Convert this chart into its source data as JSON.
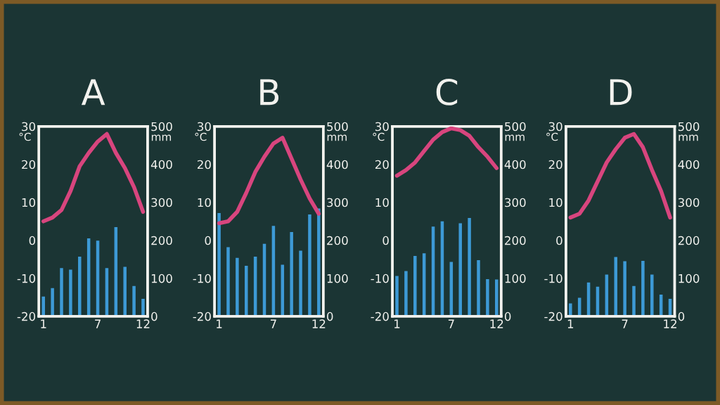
{
  "chart_data": [
    {
      "type": "bar",
      "title": "A",
      "ylabel": "°C",
      "y2label": "mm",
      "x": [
        1,
        2,
        3,
        4,
        5,
        6,
        7,
        8,
        9,
        10,
        11,
        12
      ],
      "xlim": [
        0.5,
        12.5
      ],
      "xticks": [
        1,
        7,
        12
      ],
      "ylim": [
        -20,
        30
      ],
      "yticks": [
        -20,
        -10,
        0,
        10,
        20,
        30
      ],
      "y2lim": [
        0,
        500
      ],
      "y2ticks": [
        0,
        100,
        200,
        300,
        400,
        500
      ],
      "grid": false,
      "series": [
        {
          "axis": "y2",
          "color": "#3d9ad6",
          "values": [
            52,
            74,
            127,
            123,
            157,
            205,
            199,
            127,
            235,
            130,
            80,
            46
          ]
        },
        {
          "type": "line",
          "axis": "y",
          "color": "#d8457e",
          "values": [
            5,
            6,
            8,
            13,
            19.5,
            23,
            26,
            28,
            23,
            19,
            14,
            7.5
          ]
        }
      ]
    },
    {
      "type": "bar",
      "title": "B",
      "ylabel": "°C",
      "y2label": "mm",
      "x": [
        1,
        2,
        3,
        4,
        5,
        6,
        7,
        8,
        9,
        10,
        11,
        12
      ],
      "xlim": [
        0.5,
        12.5
      ],
      "xticks": [
        1,
        7,
        12
      ],
      "ylim": [
        -20,
        30
      ],
      "yticks": [
        -20,
        -10,
        0,
        10,
        20,
        30
      ],
      "y2lim": [
        0,
        500
      ],
      "y2ticks": [
        0,
        100,
        200,
        300,
        400,
        500
      ],
      "grid": false,
      "series": [
        {
          "axis": "y2",
          "color": "#3d9ad6",
          "values": [
            272,
            182,
            154,
            133,
            157,
            191,
            238,
            136,
            222,
            173,
            268,
            284
          ]
        },
        {
          "type": "line",
          "axis": "y",
          "color": "#d8457e",
          "values": [
            4.5,
            5,
            7.5,
            12.5,
            18,
            22,
            25.5,
            27,
            21.5,
            16,
            11,
            7
          ]
        }
      ]
    },
    {
      "type": "bar",
      "title": "C",
      "ylabel": "°C",
      "y2label": "mm",
      "x": [
        1,
        2,
        3,
        4,
        5,
        6,
        7,
        8,
        9,
        10,
        11,
        12
      ],
      "xlim": [
        0.5,
        12.5
      ],
      "xticks": [
        1,
        7,
        12
      ],
      "ylim": [
        -20,
        30
      ],
      "yticks": [
        -20,
        -10,
        0,
        10,
        20,
        30
      ],
      "y2lim": [
        0,
        500
      ],
      "y2ticks": [
        0,
        100,
        200,
        300,
        400,
        500
      ],
      "grid": false,
      "series": [
        {
          "axis": "y2",
          "color": "#3d9ad6",
          "values": [
            106,
            119,
            159,
            166,
            236,
            250,
            143,
            245,
            259,
            148,
            98,
            97
          ]
        },
        {
          "type": "line",
          "axis": "y",
          "color": "#d8457e",
          "values": [
            17,
            18.5,
            20.5,
            23.5,
            26.5,
            28.5,
            29.5,
            29,
            27.5,
            24.5,
            22,
            19
          ]
        }
      ]
    },
    {
      "type": "bar",
      "title": "D",
      "ylabel": "°C",
      "y2label": "mm",
      "x": [
        1,
        2,
        3,
        4,
        5,
        6,
        7,
        8,
        9,
        10,
        11,
        12
      ],
      "xlim": [
        0.5,
        12.5
      ],
      "xticks": [
        1,
        7,
        12
      ],
      "ylim": [
        -20,
        30
      ],
      "yticks": [
        -20,
        -10,
        0,
        10,
        20,
        30
      ],
      "y2lim": [
        0,
        500
      ],
      "y2ticks": [
        0,
        100,
        200,
        300,
        400,
        500
      ],
      "grid": false,
      "series": [
        {
          "axis": "y2",
          "color": "#3d9ad6",
          "values": [
            34,
            49,
            89,
            78,
            110,
            156,
            145,
            80,
            146,
            110,
            57,
            46
          ]
        },
        {
          "type": "line",
          "axis": "y",
          "color": "#d8457e",
          "values": [
            6,
            7,
            10.5,
            15.5,
            20.5,
            24,
            27,
            28,
            24.5,
            18.5,
            13,
            6
          ]
        }
      ]
    }
  ]
}
